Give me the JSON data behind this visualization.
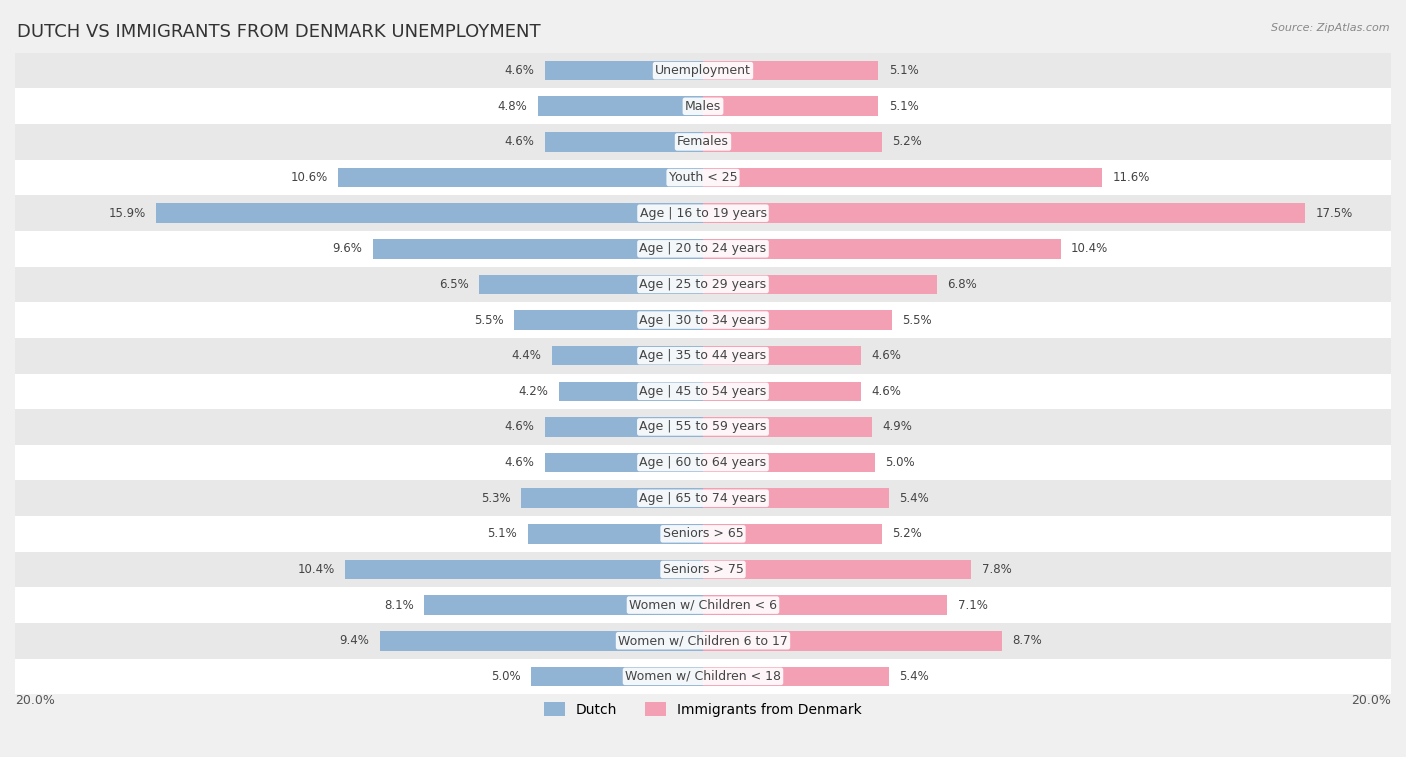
{
  "title": "DUTCH VS IMMIGRANTS FROM DENMARK UNEMPLOYMENT",
  "source": "Source: ZipAtlas.com",
  "categories": [
    "Unemployment",
    "Males",
    "Females",
    "Youth < 25",
    "Age | 16 to 19 years",
    "Age | 20 to 24 years",
    "Age | 25 to 29 years",
    "Age | 30 to 34 years",
    "Age | 35 to 44 years",
    "Age | 45 to 54 years",
    "Age | 55 to 59 years",
    "Age | 60 to 64 years",
    "Age | 65 to 74 years",
    "Seniors > 65",
    "Seniors > 75",
    "Women w/ Children < 6",
    "Women w/ Children 6 to 17",
    "Women w/ Children < 18"
  ],
  "dutch_values": [
    4.6,
    4.8,
    4.6,
    10.6,
    15.9,
    9.6,
    6.5,
    5.5,
    4.4,
    4.2,
    4.6,
    4.6,
    5.3,
    5.1,
    10.4,
    8.1,
    9.4,
    5.0
  ],
  "immigrant_values": [
    5.1,
    5.1,
    5.2,
    11.6,
    17.5,
    10.4,
    6.8,
    5.5,
    4.6,
    4.6,
    4.9,
    5.0,
    5.4,
    5.2,
    7.8,
    7.1,
    8.7,
    5.4
  ],
  "dutch_color": "#92b4d4",
  "immigrant_color": "#f4a0b4",
  "dutch_label": "Dutch",
  "immigrant_label": "Immigrants from Denmark",
  "axis_max": 20.0,
  "background_color": "#f0f0f0",
  "title_fontsize": 13,
  "label_fontsize": 9,
  "value_fontsize": 8.5
}
